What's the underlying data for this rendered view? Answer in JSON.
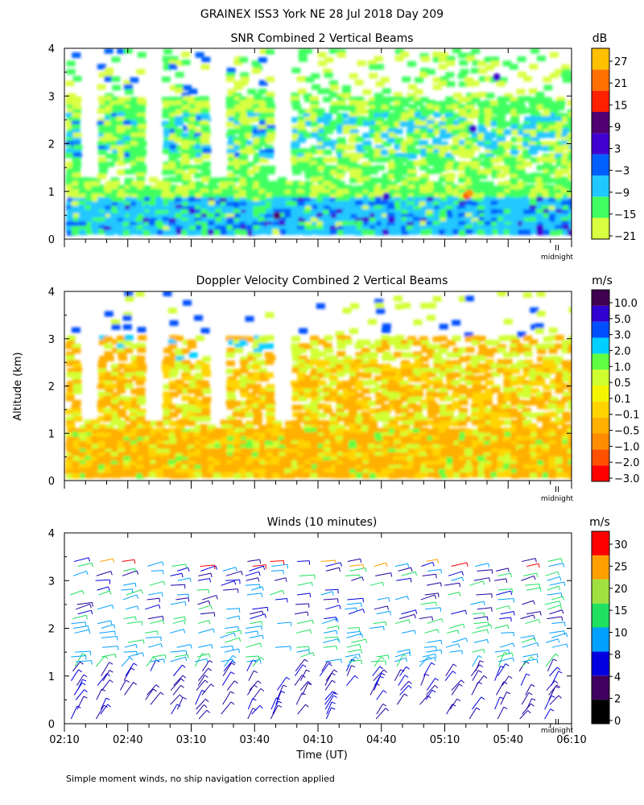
{
  "figure": {
    "title": "GRAINEX ISS3 York NE  28 Jul 2018 Day 209",
    "shared_ylabel": "Altitude (km)",
    "shared_xlabel": "Time (UT)",
    "footnote": "Simple moment winds, no ship navigation correction applied",
    "midnight_label": "midnight"
  },
  "chart_data": [
    {
      "type": "heatmap",
      "title": "SNR Combined 2 Vertical Beams",
      "ylabel": "Altitude (km)",
      "yticks": [
        "0",
        "1",
        "2",
        "3",
        "4"
      ],
      "ylim": [
        0,
        4
      ],
      "xlim_minutes_ut": [
        130,
        370
      ],
      "colorbar": {
        "unit": "dB",
        "tick_labels": [
          "27",
          "21",
          "15",
          "9",
          "3",
          "−3",
          "−9",
          "−15",
          "−21"
        ],
        "colors": [
          "#d8ff40",
          "#40ff60",
          "#20c8ff",
          "#0060ff",
          "#4000d0",
          "#500070",
          "#ff2000",
          "#ff7000",
          "#ffc000"
        ]
      }
    },
    {
      "type": "heatmap",
      "title": "Doppler Velocity Combined 2 Vertical Beams",
      "ylabel": "Altitude (km)",
      "yticks": [
        "0",
        "1",
        "2",
        "3",
        "4"
      ],
      "ylim": [
        0,
        4
      ],
      "xlim_minutes_ut": [
        130,
        370
      ],
      "colorbar": {
        "unit": "m/s",
        "tick_labels": [
          "10.0",
          "5.0",
          "3.0",
          "2.0",
          "1.0",
          "0.5",
          "0.1",
          "−0.1",
          "−0.5",
          "−1.0",
          "−2.0",
          "−3.0"
        ],
        "colors": [
          "#ff0000",
          "#ff5000",
          "#ff8c00",
          "#ffb000",
          "#ffd400",
          "#f4f400",
          "#d0ff30",
          "#60ff40",
          "#00d0ff",
          "#0050ff",
          "#3000d0",
          "#400050"
        ]
      }
    },
    {
      "type": "scatter",
      "title": "Winds (10 minutes)",
      "ylabel": "Altitude (km)",
      "xlabel": "Time (UT)",
      "yticks": [
        "0",
        "1",
        "2",
        "3",
        "4"
      ],
      "ylim": [
        0,
        4
      ],
      "xticks": [
        "02:10",
        "02:40",
        "03:10",
        "03:40",
        "04:10",
        "04:40",
        "05:10",
        "05:40",
        "06:10"
      ],
      "xtick_minutes": [
        130,
        160,
        190,
        220,
        250,
        280,
        310,
        340,
        370
      ],
      "xlim_minutes_ut": [
        130,
        370
      ],
      "colorbar": {
        "unit": "m/s",
        "tick_labels": [
          "30",
          "25",
          "20",
          "15",
          "10",
          "8",
          "4",
          "2",
          "0"
        ],
        "colors": [
          "#000000",
          "#400060",
          "#0000e0",
          "#00a0ff",
          "#20e060",
          "#a0e040",
          "#ffa000",
          "#ff0000"
        ]
      }
    }
  ]
}
